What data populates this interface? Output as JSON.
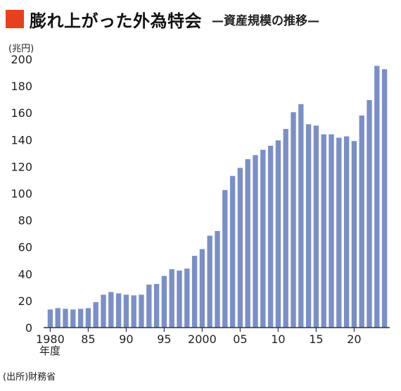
{
  "header": {
    "title": "膨れ上がった外為特会",
    "subtitle": "—資産規模の推移—",
    "accent_color": "#e8401c"
  },
  "chart_data": {
    "type": "bar",
    "unit_label": "(兆円)",
    "xlabel": "年度",
    "source": "(出所)財務省",
    "bar_color": "#7b8fc7",
    "ylim": [
      0,
      200
    ],
    "yticks": [
      0,
      20,
      40,
      60,
      80,
      100,
      120,
      140,
      160,
      180,
      200
    ],
    "x_tick_labels": [
      {
        "year": 1980,
        "label": "1980"
      },
      {
        "year": 1985,
        "label": "85"
      },
      {
        "year": 1990,
        "label": "90"
      },
      {
        "year": 1995,
        "label": "95"
      },
      {
        "year": 2000,
        "label": "2000"
      },
      {
        "year": 2005,
        "label": "05"
      },
      {
        "year": 2010,
        "label": "10"
      },
      {
        "year": 2015,
        "label": "15"
      },
      {
        "year": 2020,
        "label": "20"
      }
    ],
    "categories": [
      1980,
      1981,
      1982,
      1983,
      1984,
      1985,
      1986,
      1987,
      1988,
      1989,
      1990,
      1991,
      1992,
      1993,
      1994,
      1995,
      1996,
      1997,
      1998,
      1999,
      2000,
      2001,
      2002,
      2003,
      2004,
      2005,
      2006,
      2007,
      2008,
      2009,
      2010,
      2011,
      2012,
      2013,
      2014,
      2015,
      2016,
      2017,
      2018,
      2019,
      2020,
      2021,
      2022,
      2023,
      2024
    ],
    "values": [
      13.5,
      14.5,
      14,
      13.5,
      14,
      14.5,
      19,
      24.5,
      26.5,
      25.5,
      24.5,
      24,
      24.5,
      32,
      32.5,
      38.5,
      43.5,
      42.5,
      44,
      53.5,
      58.5,
      68.5,
      72,
      102.5,
      113,
      119,
      125.5,
      128.5,
      132.5,
      135.5,
      139.5,
      148,
      160.5,
      166.5,
      151.5,
      150.5,
      144,
      144,
      141.5,
      142.5,
      139,
      158,
      169.5,
      195,
      192.5
    ]
  }
}
